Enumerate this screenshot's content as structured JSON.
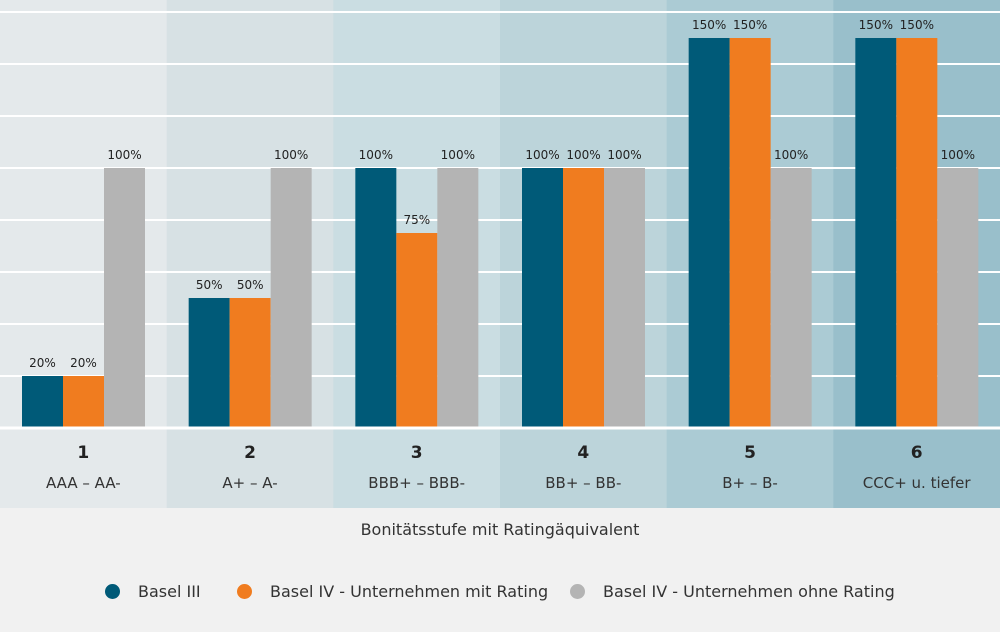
{
  "chart_data": {
    "type": "bar",
    "categories": [
      "1",
      "2",
      "3",
      "4",
      "5",
      "6"
    ],
    "category_sublabels": [
      "AAA – AA-",
      "A+ – A-",
      "BBB+ – BBB-",
      "BB+ – BB-",
      "B+ – B-",
      "CCC+ u. tiefer"
    ],
    "series": [
      {
        "name": "Basel III",
        "values": [
          20,
          50,
          100,
          100,
          150,
          150
        ],
        "color": "#005a78",
        "labels": [
          "20%",
          "50%",
          "100%",
          "100%",
          "150%",
          "150%"
        ]
      },
      {
        "name": "Basel IV - Unternehmen mit Rating",
        "values": [
          20,
          50,
          75,
          100,
          150,
          150
        ],
        "color": "#f07c1f",
        "labels": [
          "20%",
          "50%",
          "75%",
          "100%",
          "150%",
          "150%"
        ]
      },
      {
        "name": "Basel IV - Unternehmen ohne Rating",
        "values": [
          100,
          100,
          100,
          100,
          100,
          100
        ],
        "color": "#b4b4b4",
        "labels": [
          "100%",
          "100%",
          "100%",
          "100%",
          "100%",
          "100%"
        ]
      }
    ],
    "column_backgrounds": [
      "#e4e9eb",
      "#d7e1e4",
      "#cadde2",
      "#bcd4da",
      "#abcbd4",
      "#99bfcb"
    ],
    "xlabel": "Bonitätsstufe mit Ratingäquivalent",
    "ylabel": "",
    "ylim": [
      0,
      160
    ],
    "grid": true,
    "legend_position": "bottom"
  }
}
